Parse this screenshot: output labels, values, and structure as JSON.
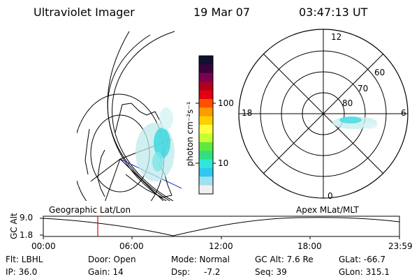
{
  "header": {
    "instrument": "Ultraviolet Imager",
    "date": "19 Mar 07",
    "time": "03:47:13 UT"
  },
  "colorbar": {
    "unit_label": "photon cm⁻²s⁻¹",
    "ticks": [
      "100",
      "10"
    ],
    "colors": [
      "#101030",
      "#3a0040",
      "#7a0050",
      "#b00020",
      "#e00010",
      "#ff5000",
      "#ff9a00",
      "#ffd000",
      "#ffff40",
      "#c8ff30",
      "#60e840",
      "#30e080",
      "#30e8d8",
      "#30c8f0",
      "#a0e0f0",
      "#f0f0f0"
    ]
  },
  "geo_panel": {
    "label": "Geographic Lat/Lon"
  },
  "polar_panel": {
    "label": "Apex MLat/MLT",
    "mlt_labels": {
      "top": "12",
      "right": "6",
      "bottom": "0",
      "left": "18"
    },
    "lat_labels": [
      "60",
      "70",
      "80"
    ]
  },
  "timeline": {
    "axis_title": "GC Alt",
    "y_max": "9.0",
    "y_min": "1.8",
    "x_ticks": [
      "00:00",
      "06:00",
      "12:00",
      "18:00",
      "23:59"
    ],
    "marker_color": "#e00000"
  },
  "info": {
    "row1": [
      "Flt: LBHL",
      "Door: Open",
      "Mode: Normal",
      "GC Alt: 7.6 Re",
      "GLat: -66.7"
    ],
    "row2": [
      "IP: 36.0",
      "Gain: 14",
      "Dsp:",
      "-7.2",
      "Seq: 39",
      "GLon: 315.1"
    ]
  }
}
